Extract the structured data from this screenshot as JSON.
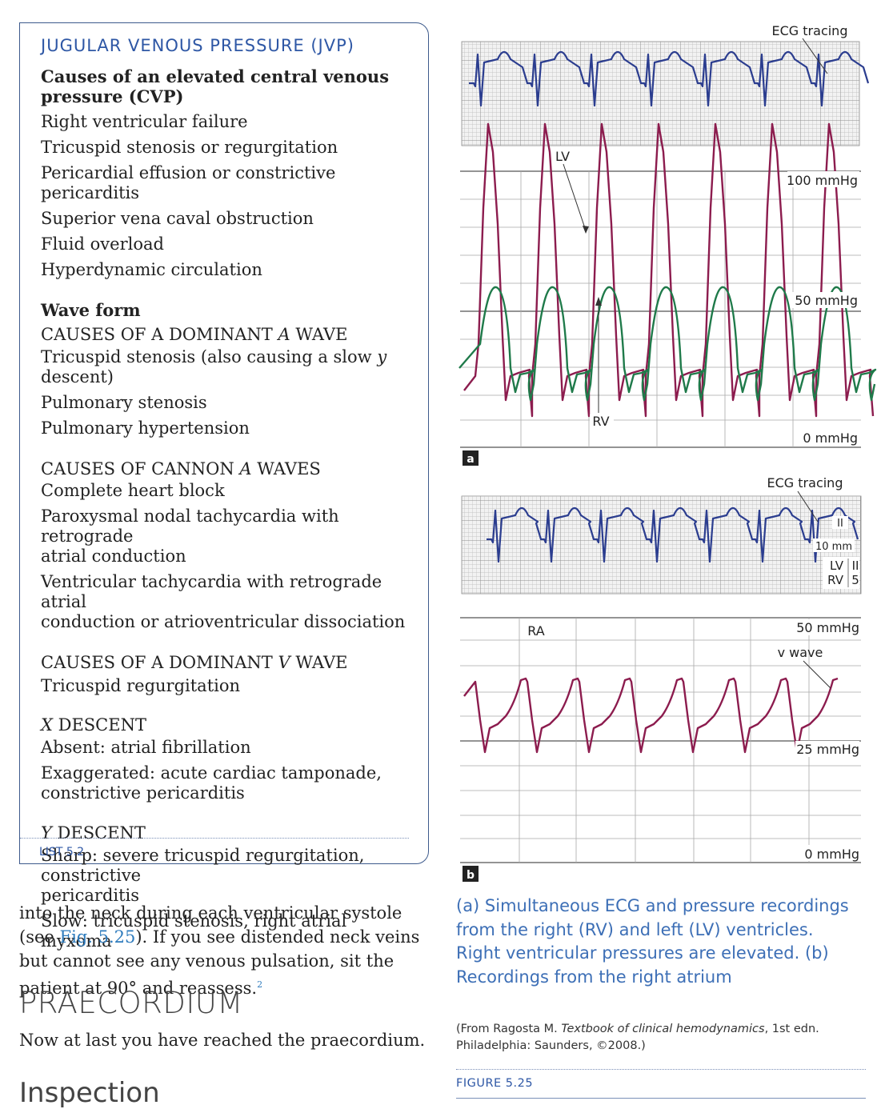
{
  "jvp_box": {
    "title": "JUGULAR VENOUS PRESSURE (JVP)",
    "cvp_heading_1": "Causes of an elevated central venous",
    "cvp_heading_2": "pressure (CVP)",
    "cvp_causes": [
      "Right ventricular failure",
      "Tricuspid stenosis or regurgitation",
      "Pericardial effusion or constrictive pericarditis",
      "Superior vena caval obstruction",
      "Fluid overload",
      "Hyperdynamic circulation"
    ],
    "waveform_heading": "Wave form",
    "dominant_a": {
      "heading_pre": "CAUSES OF A DOMINANT ",
      "heading_em": "A",
      "heading_post": " WAVE",
      "item1_pre": "Tricuspid stenosis (also causing a slow ",
      "item1_em": "y",
      "item1_post": " descent)",
      "item2": "Pulmonary stenosis",
      "item3": "Pulmonary hypertension"
    },
    "cannon_a": {
      "heading_pre": "CAUSES OF CANNON ",
      "heading_em": "A",
      "heading_post": " WAVES",
      "item1": "Complete heart block",
      "item2_l1": "Paroxysmal nodal tachycardia with retrograde",
      "item2_l2": "atrial conduction",
      "item3_l1": "Ventricular tachycardia with retrograde atrial",
      "item3_l2": "conduction or atrioventricular dissociation"
    },
    "dominant_v": {
      "heading_pre": "CAUSES OF A DOMINANT ",
      "heading_em": "V",
      "heading_post": " WAVE",
      "item1": "Tricuspid regurgitation"
    },
    "x_descent": {
      "heading_em": "X",
      "heading_post": " DESCENT",
      "item1": "Absent: atrial fibrillation",
      "item2_l1": "Exaggerated: acute cardiac tamponade,",
      "item2_l2": "constrictive pericarditis"
    },
    "y_descent": {
      "heading_em": "Y",
      "heading_post": " DESCENT",
      "item1_l1": "Sharp: severe tricuspid regurgitation, constrictive",
      "item1_l2": "pericarditis",
      "item2": "Slow: tricuspid stenosis, right atrial myxoma"
    },
    "tag": "LIST 5.2"
  },
  "body": {
    "para_pre": "into the neck during each ventricular systole (see ",
    "fig_link": "Fig. 5.25",
    "para_post": "). If you see distended neck veins but cannot see any venous pulsation, sit the patient at 90° and reassess.",
    "footnote": "2",
    "section_heading": "PRAECORDIUM",
    "section_text": "Now at last you have reached the praecordium.",
    "subsection_heading": "Inspection"
  },
  "figure": {
    "panel_a": {
      "ecg_label": "ECG tracing",
      "lv_label": "LV",
      "rv_label": "RV",
      "scale_100": "100 mmHg",
      "scale_50": "50 mmHg",
      "scale_0": "0 mmHg",
      "panel_letter": "a"
    },
    "panel_b": {
      "ecg_label": "ECG tracing",
      "lead_label": "II",
      "gain_label": "10 mm",
      "lv_label": "LV",
      "lv_value": "II",
      "rv_label": "RV",
      "rv_value": "5",
      "ra_label": "RA",
      "scale_50": "50 mmHg",
      "v_wave_label": "v wave",
      "scale_25": "25 mmHg",
      "scale_0": "0 mmHg",
      "panel_letter": "b"
    },
    "caption": "(a) Simultaneous ECG and pressure recordings from the right (RV) and left (LV) ventricles. Right ventricular pressures are elevated. (b) Recordings from the right atrium",
    "source_pre": "(From Ragosta M. ",
    "source_em": "Textbook of clinical hemodynamics",
    "source_post": ", 1st edn. Philadelphia: Saunders, ©2008.)",
    "tag": "FIGURE 5.25",
    "colors": {
      "ecg": "#2b3d8f",
      "lv": "#8c1c4e",
      "rv": "#1f7a4a",
      "ra": "#8c1c4e",
      "accent": "#2e57a5"
    }
  }
}
